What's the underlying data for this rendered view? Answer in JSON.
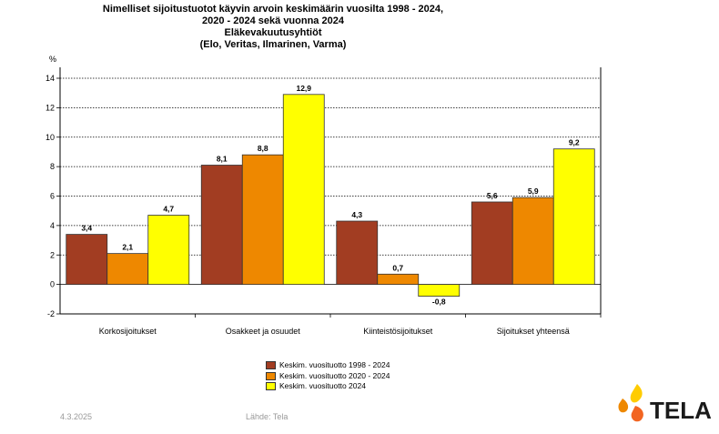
{
  "title_lines": [
    "Nimelliset sijoitustuotot käyvin arvoin keskimäärin vuosilta 1998 - 2024,",
    "2020 - 2024 sekä vuonna 2024",
    "Eläkevakuutusyhtiöt",
    "(Elo, Veritas, Ilmarinen, Varma)"
  ],
  "chart_data": {
    "type": "bar",
    "ylabel": "%",
    "ylim": [
      -2,
      14
    ],
    "yticks": [
      -2,
      0,
      2,
      4,
      6,
      8,
      10,
      12,
      14
    ],
    "grid": true,
    "legend_position": "bottom-center",
    "categories": [
      "Korkosijoitukset",
      "Osakkeet ja osuudet",
      "Kiinteistösijoitukset",
      "Sijoitukset yhteensä"
    ],
    "series": [
      {
        "name": "Keskim. vuosituotto 1998 - 2024",
        "color": "#a23d22",
        "values": [
          3.4,
          8.1,
          4.3,
          5.6
        ],
        "labels": [
          "3,4",
          "8,1",
          "4,3",
          "5,6"
        ]
      },
      {
        "name": "Keskim. vuosituotto 2020 - 2024",
        "color": "#ee8800",
        "values": [
          2.1,
          8.8,
          0.7,
          5.9
        ],
        "labels": [
          "2,1",
          "8,8",
          "0,7",
          "5,9"
        ]
      },
      {
        "name": "Keskim. vuosituotto 2024",
        "color": "#ffff00",
        "values": [
          4.7,
          12.9,
          -0.8,
          9.2
        ],
        "labels": [
          "4,7",
          "12,9",
          "-0,8",
          "9,2"
        ]
      }
    ]
  },
  "footer": {
    "date": "4.3.2025",
    "source": "Lähde: Tela"
  },
  "logo": {
    "text": "TELA",
    "colors": [
      "#ee8800",
      "#ffcc00",
      "#f26522"
    ]
  }
}
